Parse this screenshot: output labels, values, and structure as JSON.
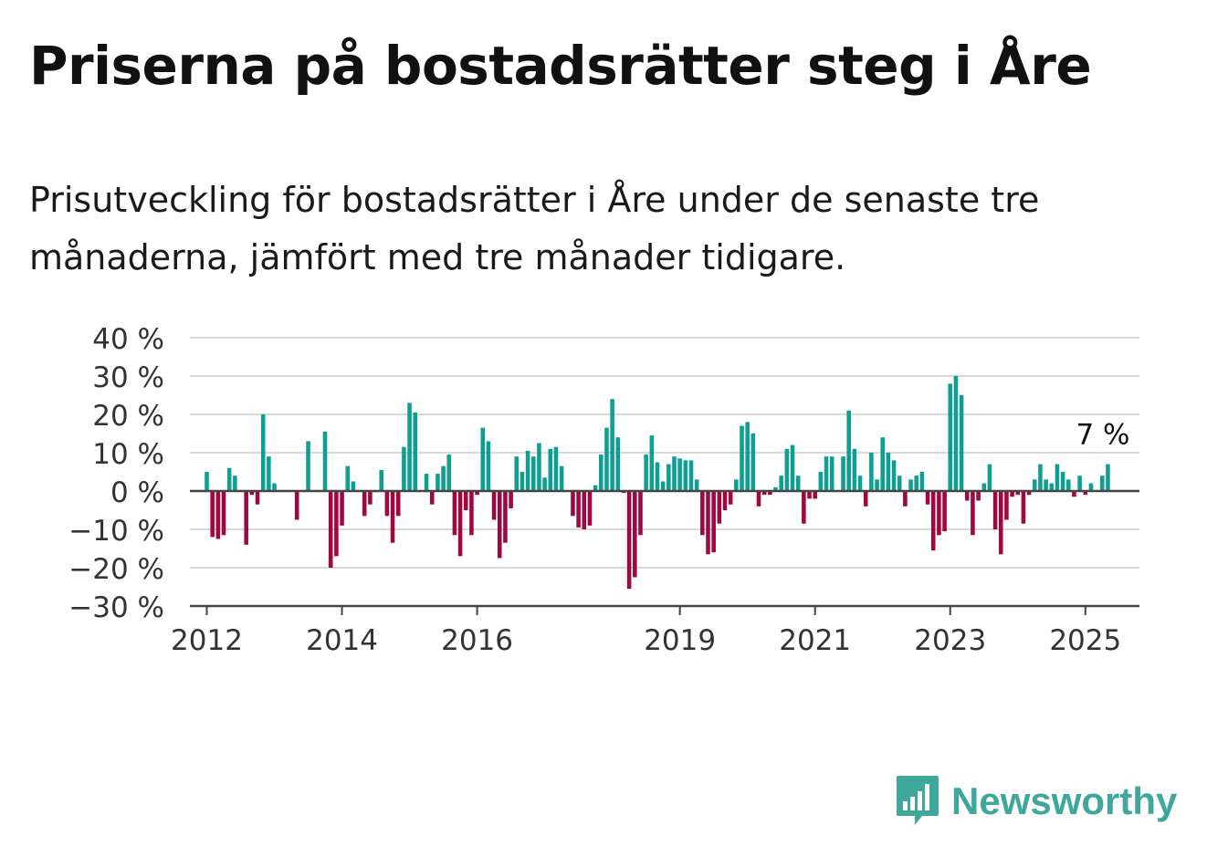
{
  "header": {
    "title": "Priserna på bostadsrätter steg i Åre",
    "subtitle": "Prisutveckling för bostadsrätter i Åre under de senaste tre månaderna, jämfört med tre månader tidigare."
  },
  "brand": {
    "name": "Newsworthy",
    "icon": "newsworthy-logo-icon"
  },
  "colors": {
    "positive": "#0f9e92",
    "negative": "#a0063f",
    "grid": "#d9d9d9",
    "axis": "#444444"
  },
  "chart_data": {
    "type": "bar",
    "title": "Priserna på bostadsrätter steg i Åre",
    "subtitle": "Prisutveckling för bostadsrätter i Åre under de senaste tre månaderna, jämfört med tre månader tidigare.",
    "xlabel": "",
    "ylabel": "",
    "ylim": [
      -30,
      40
    ],
    "yticks": [
      -30,
      -20,
      -10,
      0,
      10,
      20,
      30,
      40
    ],
    "ytick_labels": [
      "−30 %",
      "−20 %",
      "−10 %",
      "0 %",
      "10 %",
      "20 %",
      "30 %",
      "40 %"
    ],
    "xlim": [
      2011.75,
      2025.8
    ],
    "xticks": [
      2012,
      2014,
      2016,
      2019,
      2021,
      2023,
      2025
    ],
    "xtick_labels": [
      "2012",
      "2014",
      "2016",
      "2019",
      "2021",
      "2023",
      "2025"
    ],
    "x_start": {
      "year": 2012,
      "month": 1
    },
    "unit": "%",
    "grid": true,
    "annotation": {
      "text": "7 %"
    },
    "values": [
      5,
      -12,
      -12.5,
      -11.5,
      6,
      4,
      0,
      -14,
      -1,
      -3.5,
      20,
      9,
      2,
      0,
      0,
      0,
      -7.5,
      0,
      13,
      0,
      0,
      15.5,
      -20,
      -17,
      -9,
      6.5,
      2.5,
      0,
      -6.5,
      -3.5,
      0,
      5.5,
      -6.5,
      -13.5,
      -6.5,
      11.5,
      23,
      20.5,
      0,
      4.5,
      -3.5,
      4.5,
      6.5,
      9.5,
      -11.5,
      -17,
      -5,
      -11.5,
      -1,
      16.5,
      13,
      -7.5,
      -17.5,
      -13.5,
      -4.5,
      9,
      5,
      10.5,
      9,
      12.5,
      3.5,
      11,
      11.5,
      6.5,
      0,
      -6.5,
      -9.5,
      -10,
      -9,
      1.5,
      9.5,
      16.5,
      24,
      14,
      -0.5,
      -25.5,
      -22.5,
      -11.5,
      9.5,
      14.5,
      7.5,
      2.5,
      7,
      9,
      8.5,
      8,
      8,
      3,
      -11.5,
      -16.5,
      -16,
      -8.5,
      -5,
      -3.5,
      3,
      17,
      18,
      15,
      -4,
      -1,
      -1,
      1,
      4,
      11,
      12,
      4,
      -8.5,
      -2,
      -2,
      5,
      9,
      9,
      0,
      9,
      21,
      11,
      4,
      -4,
      10,
      3,
      14,
      10,
      8,
      4,
      -4,
      3,
      4,
      5,
      -3.5,
      -15.5,
      -11.5,
      -10.5,
      28,
      30,
      25,
      -2.5,
      -11.5,
      -2.5,
      2,
      7,
      -10,
      -16.5,
      -7.5,
      -1.5,
      -1,
      -8.5,
      -1,
      3,
      7,
      3,
      2,
      7,
      5,
      3,
      -1.5,
      4,
      -1,
      2,
      0,
      4,
      7
    ]
  }
}
